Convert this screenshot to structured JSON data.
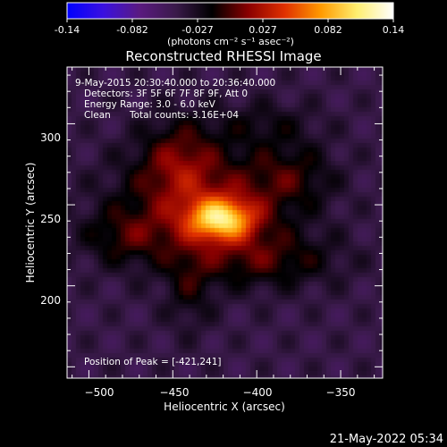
{
  "colorbar": {
    "ticks": [
      "-0.14",
      "-0.082",
      "-0.027",
      "0.027",
      "0.082",
      "0.14"
    ],
    "unit_label": "(photons cm⁻² s⁻¹ asec⁻²)",
    "colors": [
      "#0000ff",
      "#3a10e0",
      "#5a1a80",
      "#3a1a4a",
      "#000000",
      "#8a0000",
      "#e03000",
      "#ff9a00",
      "#ffee70",
      "#ffffff"
    ]
  },
  "title": "Reconstructed RHESSI Image",
  "annotations": {
    "time": "9-May-2015 20:30:40.000 to 20:36:40.000",
    "detectors": "Detectors: 3F 5F 6F 7F 8F 9F, Att 0",
    "energy": "Energy Range: 3.0 - 6.0 keV",
    "clean": "Clean",
    "counts": "Total counts: 3.16E+04",
    "peak": "Position of Peak = [-421,241]"
  },
  "footer_date": "21-May-2022 05:34",
  "chart_data": {
    "type": "heatmap",
    "title": "Reconstructed RHESSI Image",
    "xlabel": "Heliocentric X (arcsec)",
    "ylabel": "Heliocentric Y (arcsec)",
    "xlim": [
      -513,
      -325
    ],
    "ylim": [
      143,
      335
    ],
    "x_ticks": [
      -500,
      -450,
      -400,
      -350
    ],
    "y_ticks": [
      200,
      250,
      300
    ],
    "x_tick_labels": [
      "−500",
      "−450",
      "−400",
      "−350"
    ],
    "y_tick_labels": [
      "200",
      "250",
      "300"
    ],
    "color_range": [
      -0.14,
      0.14
    ],
    "peak": [
      -421,
      241
    ],
    "sources": [
      {
        "x": -421,
        "y": 241,
        "sx": 14,
        "sy": 9,
        "amp": 0.115
      },
      {
        "x": -432,
        "y": 250,
        "sx": 36,
        "sy": 24,
        "amp": 0.05
      },
      {
        "x": -446,
        "y": 278,
        "sx": 16,
        "sy": 18,
        "amp": 0.04
      },
      {
        "x": -394,
        "y": 216,
        "sx": 30,
        "sy": 12,
        "amp": 0.035
      },
      {
        "x": -478,
        "y": 230,
        "sx": 18,
        "sy": 12,
        "amp": 0.03
      },
      {
        "x": -380,
        "y": 268,
        "sx": 18,
        "sy": 14,
        "amp": 0.03
      },
      {
        "x": -440,
        "y": 198,
        "sx": 10,
        "sy": 18,
        "amp": 0.025
      },
      {
        "x": -395,
        "y": 300,
        "sx": 22,
        "sy": 10,
        "amp": 0.02
      }
    ],
    "background_level": -0.045
  }
}
